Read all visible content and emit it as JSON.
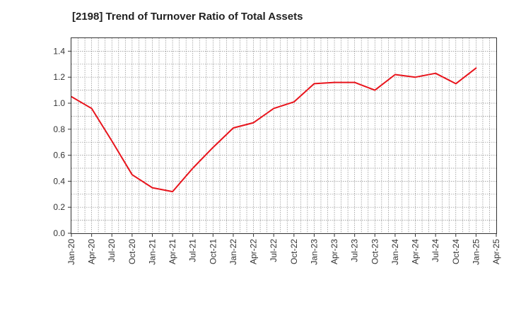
{
  "chart_data": {
    "type": "line",
    "title": "[2198]  Trend of Turnover Ratio of Total Assets",
    "xlabel": "",
    "ylabel": "",
    "ylim": [
      0,
      1.5
    ],
    "yticks": [
      "0.0",
      "0.2",
      "0.4",
      "0.6",
      "0.8",
      "1.0",
      "1.2",
      "1.4"
    ],
    "yticks_values": [
      0,
      0.2,
      0.4,
      0.6,
      0.8,
      1.0,
      1.2,
      1.4
    ],
    "categories": [
      "Jan-20",
      "Apr-20",
      "Jul-20",
      "Oct-20",
      "Jan-21",
      "Apr-21",
      "Jul-21",
      "Oct-21",
      "Jan-22",
      "Apr-22",
      "Jul-22",
      "Oct-22",
      "Jan-23",
      "Apr-23",
      "Jul-23",
      "Oct-23",
      "Jan-24",
      "Apr-24",
      "Jul-24",
      "Oct-24",
      "Jan-25",
      "Apr-25"
    ],
    "grid": true,
    "series": [
      {
        "color": "#e8141c",
        "values": [
          1.05,
          0.96,
          0.71,
          0.45,
          0.35,
          0.32,
          0.5,
          0.66,
          0.81,
          0.85,
          0.96,
          1.01,
          1.15,
          1.16,
          1.16,
          1.1,
          1.22,
          1.2,
          1.23,
          1.15,
          1.27,
          null
        ]
      }
    ]
  }
}
